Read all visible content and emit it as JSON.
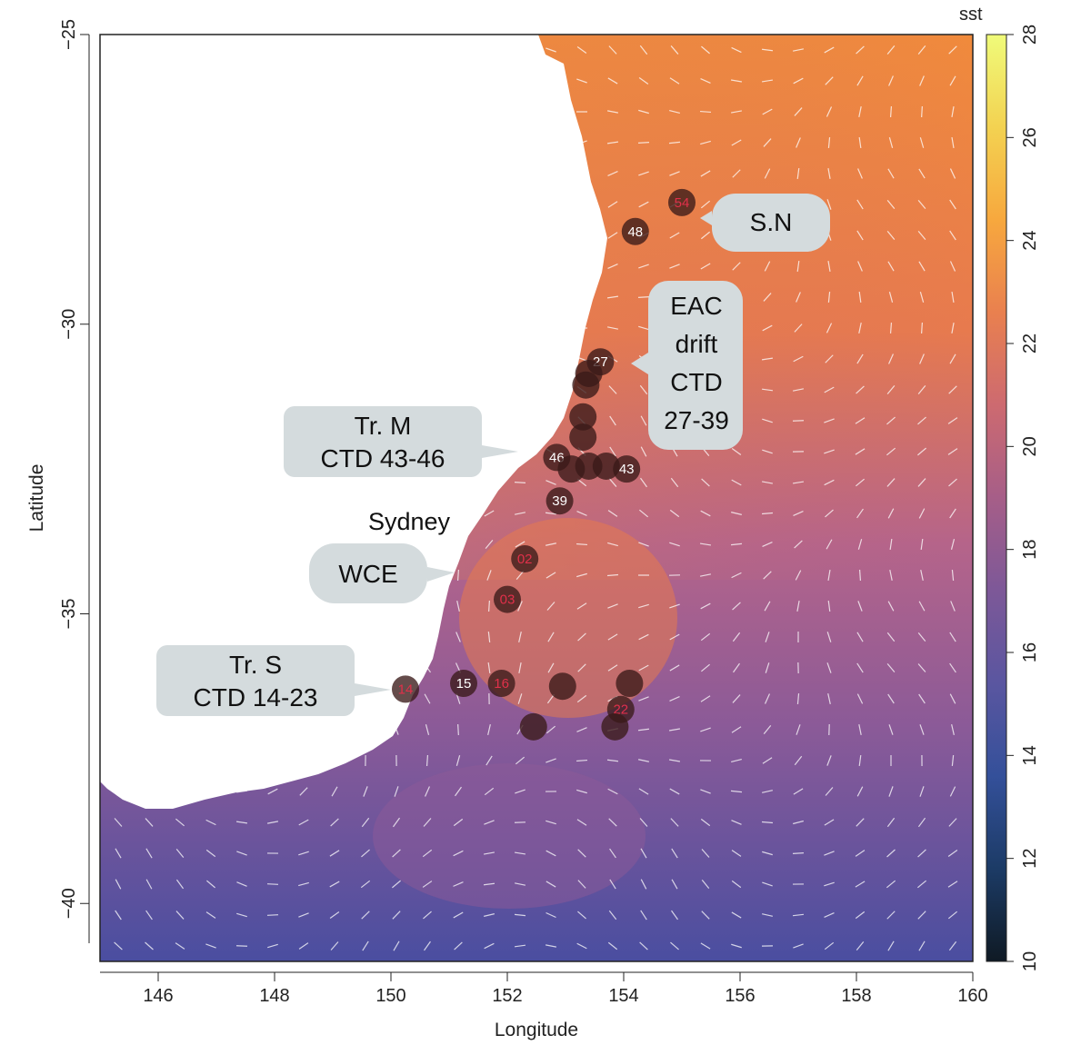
{
  "map": {
    "xlabel": "Longitude",
    "ylabel": "Latitude",
    "lon_range": [
      145,
      160
    ],
    "lat_range": [
      -41,
      -25
    ],
    "x_ticks": [
      "146",
      "148",
      "150",
      "152",
      "154",
      "156",
      "158",
      "160"
    ],
    "x_tick_values": [
      146,
      148,
      150,
      152,
      154,
      156,
      158,
      160
    ],
    "y_ticks": [
      "−25",
      "−30",
      "−35",
      "−40"
    ],
    "y_tick_values": [
      -25,
      -30,
      -35,
      -40
    ],
    "city": {
      "name": "Sydney",
      "lon": 151.2,
      "lat": -33.87
    },
    "callouts": [
      {
        "lines": [
          "S.N"
        ],
        "color": "#d4dbdd",
        "anchor_lon": 155.3,
        "anchor_lat": -28.3
      },
      {
        "lines": [
          "EAC",
          "drift",
          "CTD",
          "27-39"
        ],
        "color": "#d4dbdd",
        "anchor_lon": 153.9,
        "anchor_lat": -30.7
      },
      {
        "lines": [
          "Tr. M",
          "CTD 43-46"
        ],
        "color": "#d4dbdd",
        "anchor_lon": 152.2,
        "anchor_lat": -32.2
      },
      {
        "lines": [
          "WCE"
        ],
        "color": "#d4dbdd",
        "anchor_lon": 151.0,
        "anchor_lat": -34.3
      },
      {
        "lines": [
          "Tr. S"
        ],
        "color": "#d4dbdd",
        "anchor_lon": 150.0,
        "anchor_lat": -36.3
      },
      {
        "lines": [
          "CTD 14-23"
        ],
        "color": "#d4dbdd",
        "anchor_lon": 150.0,
        "anchor_lat": -36.3
      }
    ],
    "stations": [
      {
        "label": "54",
        "lon": 155.0,
        "lat": -27.9,
        "label_color": "#e0304a"
      },
      {
        "label": "48",
        "lon": 154.2,
        "lat": -28.4,
        "label_color": "#ffffff"
      },
      {
        "label": "27",
        "lon": 153.6,
        "lat": -30.65,
        "label_color": "#ffffff"
      },
      {
        "label": "",
        "lon": 153.4,
        "lat": -30.85,
        "label_color": "#ffffff"
      },
      {
        "label": "",
        "lon": 153.35,
        "lat": -31.05,
        "label_color": "#ffffff"
      },
      {
        "label": "",
        "lon": 153.3,
        "lat": -31.6,
        "label_color": "#ffffff"
      },
      {
        "label": "",
        "lon": 153.3,
        "lat": -31.95,
        "label_color": "#ffffff"
      },
      {
        "label": "46",
        "lon": 152.85,
        "lat": -32.3,
        "label_color": "#ffffff"
      },
      {
        "label": "",
        "lon": 153.1,
        "lat": -32.5,
        "label_color": "#ffffff"
      },
      {
        "label": "",
        "lon": 153.4,
        "lat": -32.45,
        "label_color": "#ffffff"
      },
      {
        "label": "",
        "lon": 153.7,
        "lat": -32.45,
        "label_color": "#ffffff"
      },
      {
        "label": "43",
        "lon": 154.05,
        "lat": -32.5,
        "label_color": "#ffffff"
      },
      {
        "label": "39",
        "lon": 152.9,
        "lat": -33.05,
        "label_color": "#ffffff"
      },
      {
        "label": "02",
        "lon": 152.3,
        "lat": -34.05,
        "label_color": "#e0304a"
      },
      {
        "label": "03",
        "lon": 152.0,
        "lat": -34.75,
        "label_color": "#e0304a"
      },
      {
        "label": "14",
        "lon": 150.25,
        "lat": -36.3,
        "label_color": "#e0304a"
      },
      {
        "label": "15",
        "lon": 151.25,
        "lat": -36.2,
        "label_color": "#ffffff"
      },
      {
        "label": "16",
        "lon": 151.9,
        "lat": -36.2,
        "label_color": "#e0304a"
      },
      {
        "label": "",
        "lon": 152.95,
        "lat": -36.25,
        "label_color": "#ffffff"
      },
      {
        "label": "",
        "lon": 154.1,
        "lat": -36.2,
        "label_color": "#ffffff"
      },
      {
        "label": "22",
        "lon": 153.95,
        "lat": -36.65,
        "label_color": "#e0304a"
      },
      {
        "label": "",
        "lon": 153.85,
        "lat": -36.95,
        "label_color": "#ffffff"
      },
      {
        "label": "",
        "lon": 152.45,
        "lat": -36.95,
        "label_color": "#ffffff"
      }
    ]
  },
  "colorbar": {
    "title": "sst",
    "range": [
      10,
      28
    ],
    "ticks": [
      "10",
      "12",
      "14",
      "16",
      "18",
      "20",
      "22",
      "24",
      "26",
      "28"
    ],
    "tick_values": [
      10,
      12,
      14,
      16,
      18,
      20,
      22,
      24,
      26,
      28
    ],
    "colors": [
      "#0f1a24",
      "#1c3b66",
      "#34509a",
      "#5a56a0",
      "#7d5898",
      "#a65e88",
      "#cd6a70",
      "#e9804f",
      "#f7a83e",
      "#f3d251",
      "#f0fb7a"
    ]
  },
  "colors": {
    "land": "#ffffff",
    "ocean_warm": "#f08a3c",
    "ocean_mid": "#a75b84",
    "ocean_cold": "#4a4ea0",
    "station_fill": "#3a1a18",
    "arrow": "#ffffff"
  }
}
